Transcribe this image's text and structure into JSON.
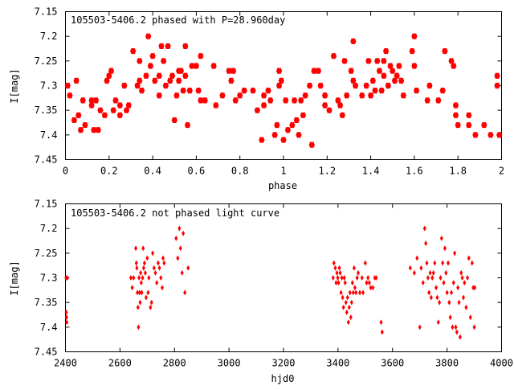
{
  "chart_data": [
    {
      "type": "scatter",
      "title": "105503-5406.2 phased with P=28.960day",
      "xlabel": "phase",
      "ylabel": "I[mag]",
      "xlim": [
        0,
        2
      ],
      "ylim": [
        7.15,
        7.45
      ],
      "y_inverted": true,
      "grid": false,
      "marker": "filled-hexagon",
      "color": "#ff0000",
      "xticks": [
        "0",
        "0.2",
        "0.4",
        "0.6",
        "0.8",
        "1",
        "1.2",
        "1.4",
        "1.6",
        "1.8",
        "2"
      ],
      "yticks": [
        "7.15",
        "7.2",
        "7.25",
        "7.3",
        "7.35",
        "7.4",
        "7.45"
      ],
      "points": [
        [
          0.01,
          7.3
        ],
        [
          0.02,
          7.32
        ],
        [
          0.04,
          7.37
        ],
        [
          0.05,
          7.29
        ],
        [
          0.06,
          7.36
        ],
        [
          0.07,
          7.39
        ],
        [
          0.08,
          7.33
        ],
        [
          0.09,
          7.38
        ],
        [
          0.12,
          7.34
        ],
        [
          0.12,
          7.33
        ],
        [
          0.13,
          7.39
        ],
        [
          0.14,
          7.33
        ],
        [
          0.15,
          7.39
        ],
        [
          0.16,
          7.35
        ],
        [
          0.18,
          7.36
        ],
        [
          0.19,
          7.29
        ],
        [
          0.2,
          7.28
        ],
        [
          0.21,
          7.27
        ],
        [
          0.22,
          7.35
        ],
        [
          0.23,
          7.33
        ],
        [
          0.25,
          7.34
        ],
        [
          0.25,
          7.36
        ],
        [
          0.27,
          7.3
        ],
        [
          0.28,
          7.35
        ],
        [
          0.29,
          7.34
        ],
        [
          0.31,
          7.23
        ],
        [
          0.33,
          7.3
        ],
        [
          0.34,
          7.25
        ],
        [
          0.34,
          7.29
        ],
        [
          0.35,
          7.31
        ],
        [
          0.37,
          7.28
        ],
        [
          0.38,
          7.2
        ],
        [
          0.39,
          7.26
        ],
        [
          0.4,
          7.24
        ],
        [
          0.41,
          7.29
        ],
        [
          0.43,
          7.32
        ],
        [
          0.43,
          7.28
        ],
        [
          0.44,
          7.22
        ],
        [
          0.45,
          7.25
        ],
        [
          0.46,
          7.3
        ],
        [
          0.47,
          7.22
        ],
        [
          0.48,
          7.29
        ],
        [
          0.49,
          7.28
        ],
        [
          0.5,
          7.37
        ],
        [
          0.51,
          7.32
        ],
        [
          0.52,
          7.27
        ],
        [
          0.52,
          7.29
        ],
        [
          0.53,
          7.27
        ],
        [
          0.54,
          7.31
        ],
        [
          0.55,
          7.22
        ],
        [
          0.55,
          7.28
        ],
        [
          0.56,
          7.38
        ],
        [
          0.57,
          7.31
        ],
        [
          0.58,
          7.26
        ],
        [
          0.6,
          7.26
        ],
        [
          0.61,
          7.31
        ],
        [
          0.62,
          7.24
        ],
        [
          0.62,
          7.33
        ],
        [
          0.64,
          7.33
        ],
        [
          0.68,
          7.26
        ],
        [
          0.69,
          7.34
        ],
        [
          0.72,
          7.32
        ],
        [
          0.75,
          7.27
        ],
        [
          0.76,
          7.29
        ],
        [
          0.77,
          7.27
        ],
        [
          0.78,
          7.33
        ],
        [
          0.8,
          7.32
        ],
        [
          0.82,
          7.31
        ],
        [
          0.86,
          7.31
        ],
        [
          0.88,
          7.35
        ],
        [
          0.9,
          7.41
        ],
        [
          0.91,
          7.32
        ],
        [
          0.91,
          7.34
        ],
        [
          0.93,
          7.31
        ],
        [
          0.94,
          7.33
        ],
        [
          0.96,
          7.4
        ],
        [
          0.97,
          7.38
        ],
        [
          0.98,
          7.27
        ],
        [
          0.98,
          7.3
        ],
        [
          0.99,
          7.29
        ],
        [
          1.0,
          7.41
        ],
        [
          1.01,
          7.33
        ],
        [
          1.02,
          7.39
        ],
        [
          1.04,
          7.38
        ],
        [
          1.05,
          7.33
        ],
        [
          1.06,
          7.37
        ],
        [
          1.07,
          7.4
        ],
        [
          1.08,
          7.33
        ],
        [
          1.09,
          7.36
        ],
        [
          1.1,
          7.32
        ],
        [
          1.12,
          7.3
        ],
        [
          1.13,
          7.42
        ],
        [
          1.14,
          7.27
        ],
        [
          1.16,
          7.27
        ],
        [
          1.17,
          7.3
        ],
        [
          1.19,
          7.32
        ],
        [
          1.19,
          7.34
        ],
        [
          1.21,
          7.35
        ],
        [
          1.23,
          7.24
        ],
        [
          1.25,
          7.33
        ],
        [
          1.26,
          7.34
        ],
        [
          1.27,
          7.36
        ],
        [
          1.28,
          7.25
        ],
        [
          1.29,
          7.32
        ],
        [
          1.31,
          7.27
        ],
        [
          1.32,
          7.21
        ],
        [
          1.32,
          7.29
        ],
        [
          1.33,
          7.3
        ],
        [
          1.36,
          7.32
        ],
        [
          1.38,
          7.3
        ],
        [
          1.39,
          7.25
        ],
        [
          1.4,
          7.32
        ],
        [
          1.41,
          7.29
        ],
        [
          1.42,
          7.31
        ],
        [
          1.43,
          7.25
        ],
        [
          1.44,
          7.27
        ],
        [
          1.45,
          7.31
        ],
        [
          1.46,
          7.25
        ],
        [
          1.46,
          7.28
        ],
        [
          1.47,
          7.23
        ],
        [
          1.48,
          7.3
        ],
        [
          1.49,
          7.26
        ],
        [
          1.5,
          7.27
        ],
        [
          1.51,
          7.29
        ],
        [
          1.52,
          7.28
        ],
        [
          1.53,
          7.26
        ],
        [
          1.54,
          7.29
        ],
        [
          1.55,
          7.32
        ],
        [
          1.59,
          7.23
        ],
        [
          1.6,
          7.2
        ],
        [
          1.6,
          7.26
        ],
        [
          1.61,
          7.31
        ],
        [
          1.66,
          7.33
        ],
        [
          1.67,
          7.3
        ],
        [
          1.71,
          7.33
        ],
        [
          1.73,
          7.31
        ],
        [
          1.74,
          7.23
        ],
        [
          1.77,
          7.25
        ],
        [
          1.78,
          7.26
        ],
        [
          1.79,
          7.34
        ],
        [
          1.79,
          7.36
        ],
        [
          1.8,
          7.38
        ],
        [
          1.85,
          7.36
        ],
        [
          1.85,
          7.38
        ],
        [
          1.88,
          7.4
        ],
        [
          1.92,
          7.38
        ],
        [
          1.95,
          7.4
        ],
        [
          1.98,
          7.3
        ],
        [
          1.98,
          7.28
        ],
        [
          1.99,
          7.4
        ]
      ]
    },
    {
      "type": "scatter",
      "title": "105503-5406.2 not phased light curve",
      "xlabel": "hjd0",
      "ylabel": "I[mag]",
      "xlim": [
        2400,
        4000
      ],
      "ylim": [
        7.15,
        7.45
      ],
      "y_inverted": true,
      "grid": false,
      "marker": "diamond",
      "color": "#ff0000",
      "xticks": [
        "2400",
        "2600",
        "2800",
        "3000",
        "3200",
        "3400",
        "3600",
        "3800",
        "4000"
      ],
      "yticks": [
        "7.15",
        "7.2",
        "7.25",
        "7.3",
        "7.35",
        "7.4",
        "7.45"
      ],
      "points": [
        [
          2402,
          7.3
        ],
        [
          2403,
          7.37
        ],
        [
          2404,
          7.38
        ],
        [
          2405,
          7.39
        ],
        [
          2407,
          7.3
        ],
        [
          2640,
          7.3
        ],
        [
          2645,
          7.32
        ],
        [
          2650,
          7.3
        ],
        [
          2658,
          7.24
        ],
        [
          2660,
          7.27
        ],
        [
          2662,
          7.28
        ],
        [
          2664,
          7.33
        ],
        [
          2666,
          7.36
        ],
        [
          2668,
          7.4
        ],
        [
          2670,
          7.3
        ],
        [
          2672,
          7.33
        ],
        [
          2674,
          7.35
        ],
        [
          2676,
          7.29
        ],
        [
          2678,
          7.31
        ],
        [
          2680,
          7.33
        ],
        [
          2683,
          7.3
        ],
        [
          2685,
          7.24
        ],
        [
          2687,
          7.28
        ],
        [
          2690,
          7.27
        ],
        [
          2693,
          7.29
        ],
        [
          2696,
          7.34
        ],
        [
          2700,
          7.26
        ],
        [
          2703,
          7.33
        ],
        [
          2706,
          7.3
        ],
        [
          2712,
          7.36
        ],
        [
          2716,
          7.35
        ],
        [
          2720,
          7.25
        ],
        [
          2725,
          7.28
        ],
        [
          2730,
          7.29
        ],
        [
          2735,
          7.31
        ],
        [
          2740,
          7.27
        ],
        [
          2745,
          7.28
        ],
        [
          2750,
          7.3
        ],
        [
          2755,
          7.32
        ],
        [
          2758,
          7.26
        ],
        [
          2762,
          7.27
        ],
        [
          2806,
          7.22
        ],
        [
          2812,
          7.26
        ],
        [
          2818,
          7.2
        ],
        [
          2822,
          7.24
        ],
        [
          2828,
          7.29
        ],
        [
          2832,
          7.21
        ],
        [
          2838,
          7.33
        ],
        [
          2850,
          7.28
        ],
        [
          3382,
          7.3
        ],
        [
          3385,
          7.27
        ],
        [
          3390,
          7.28
        ],
        [
          3393,
          7.31
        ],
        [
          3396,
          7.29
        ],
        [
          3399,
          7.3
        ],
        [
          3402,
          7.31
        ],
        [
          3405,
          7.28
        ],
        [
          3408,
          7.29
        ],
        [
          3411,
          7.33
        ],
        [
          3414,
          7.3
        ],
        [
          3417,
          7.34
        ],
        [
          3420,
          7.36
        ],
        [
          3423,
          7.3
        ],
        [
          3426,
          7.31
        ],
        [
          3429,
          7.35
        ],
        [
          3432,
          7.37
        ],
        [
          3435,
          7.34
        ],
        [
          3438,
          7.39
        ],
        [
          3441,
          7.36
        ],
        [
          3444,
          7.33
        ],
        [
          3447,
          7.38
        ],
        [
          3450,
          7.35
        ],
        [
          3453,
          7.31
        ],
        [
          3456,
          7.33
        ],
        [
          3459,
          7.28
        ],
        [
          3462,
          7.32
        ],
        [
          3466,
          7.33
        ],
        [
          3470,
          7.3
        ],
        [
          3474,
          7.29
        ],
        [
          3480,
          7.33
        ],
        [
          3488,
          7.3
        ],
        [
          3492,
          7.33
        ],
        [
          3500,
          7.27
        ],
        [
          3505,
          7.31
        ],
        [
          3510,
          7.3
        ],
        [
          3515,
          7.31
        ],
        [
          3520,
          7.32
        ],
        [
          3528,
          7.32
        ],
        [
          3535,
          7.3
        ],
        [
          3540,
          7.3
        ],
        [
          3558,
          7.39
        ],
        [
          3562,
          7.41
        ],
        [
          3665,
          7.28
        ],
        [
          3680,
          7.29
        ],
        [
          3690,
          7.26
        ],
        [
          3700,
          7.4
        ],
        [
          3705,
          7.28
        ],
        [
          3712,
          7.31
        ],
        [
          3718,
          7.2
        ],
        [
          3722,
          7.23
        ],
        [
          3726,
          7.27
        ],
        [
          3730,
          7.3
        ],
        [
          3734,
          7.33
        ],
        [
          3738,
          7.29
        ],
        [
          3742,
          7.34
        ],
        [
          3746,
          7.3
        ],
        [
          3750,
          7.29
        ],
        [
          3755,
          7.27
        ],
        [
          3760,
          7.32
        ],
        [
          3764,
          7.34
        ],
        [
          3768,
          7.39
        ],
        [
          3772,
          7.35
        ],
        [
          3776,
          7.3
        ],
        [
          3780,
          7.22
        ],
        [
          3784,
          7.27
        ],
        [
          3788,
          7.31
        ],
        [
          3792,
          7.24
        ],
        [
          3796,
          7.29
        ],
        [
          3800,
          7.33
        ],
        [
          3804,
          7.27
        ],
        [
          3808,
          7.35
        ],
        [
          3812,
          7.38
        ],
        [
          3816,
          7.33
        ],
        [
          3820,
          7.4
        ],
        [
          3824,
          7.31
        ],
        [
          3828,
          7.25
        ],
        [
          3832,
          7.4
        ],
        [
          3836,
          7.41
        ],
        [
          3840,
          7.32
        ],
        [
          3844,
          7.35
        ],
        [
          3848,
          7.42
        ],
        [
          3852,
          7.29
        ],
        [
          3856,
          7.3
        ],
        [
          3860,
          7.34
        ],
        [
          3864,
          7.31
        ],
        [
          3870,
          7.36
        ],
        [
          3875,
          7.3
        ],
        [
          3880,
          7.26
        ],
        [
          3886,
          7.38
        ],
        [
          3892,
          7.27
        ],
        [
          3896,
          7.32
        ],
        [
          3900,
          7.4
        ],
        [
          3902,
          7.32
        ]
      ]
    }
  ]
}
